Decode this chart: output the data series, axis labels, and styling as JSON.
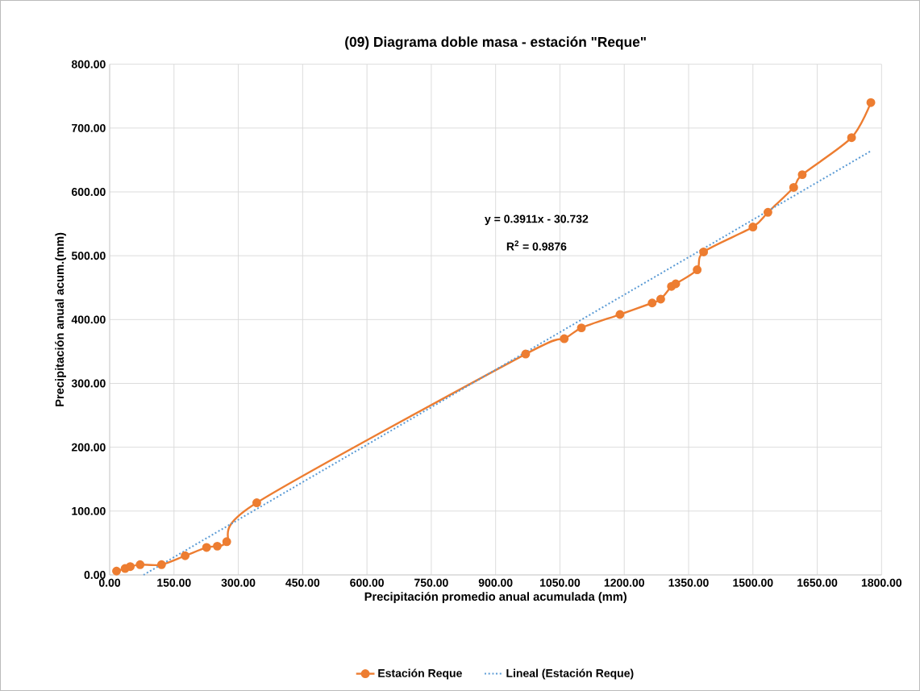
{
  "chart_data": {
    "type": "line",
    "title": "(09) Diagrama doble masa - estación \"Reque\"",
    "xlabel": "Precipitación promedio anual acumulada (mm)",
    "ylabel": "Precipitación anual acum.(mm)",
    "series": [
      {
        "name": "Estación Reque",
        "color": "#ed7d31",
        "marker": "circle",
        "line_style": "solid",
        "x": [
          16,
          36,
          48,
          71,
          121,
          176,
          226,
          251,
          273,
          343,
          970,
          1060,
          1100,
          1190,
          1265,
          1285,
          1310,
          1320,
          1370,
          1385,
          1500,
          1535,
          1595,
          1615,
          1730,
          1775
        ],
        "values": [
          6,
          10,
          13,
          16,
          16,
          30,
          43,
          45,
          52,
          113,
          346,
          370,
          387,
          408,
          426,
          432,
          452,
          456,
          478,
          506,
          545,
          568,
          607,
          627,
          685,
          740
        ]
      },
      {
        "name": "Lineal (Estación Reque)",
        "color": "#5b9bd5",
        "marker": "none",
        "line_style": "dotted",
        "x": [
          79,
          1775
        ],
        "values": [
          0,
          664
        ]
      }
    ],
    "xlim": [
      0,
      1800
    ],
    "xticks": [
      {
        "value": 0,
        "label": "0.00"
      },
      {
        "value": 150,
        "label": "150.00"
      },
      {
        "value": 300,
        "label": "300.00"
      },
      {
        "value": 450,
        "label": "450.00"
      },
      {
        "value": 600,
        "label": "600.00"
      },
      {
        "value": 750,
        "label": "750.00"
      },
      {
        "value": 900,
        "label": "900.00"
      },
      {
        "value": 1050,
        "label": "1050.00"
      },
      {
        "value": 1200,
        "label": "1200.00"
      },
      {
        "value": 1350,
        "label": "1350.00"
      },
      {
        "value": 1500,
        "label": "1500.00"
      },
      {
        "value": 1650,
        "label": "1650.00"
      },
      {
        "value": 1800,
        "label": "1800.00"
      }
    ],
    "ylim": [
      0,
      800
    ],
    "yticks": [
      {
        "value": 0,
        "label": "0.00"
      },
      {
        "value": 100,
        "label": "100.00"
      },
      {
        "value": 200,
        "label": "200.00"
      },
      {
        "value": 300,
        "label": "300.00"
      },
      {
        "value": 400,
        "label": "400.00"
      },
      {
        "value": 500,
        "label": "500.00"
      },
      {
        "value": 600,
        "label": "600.00"
      },
      {
        "value": 700,
        "label": "700.00"
      },
      {
        "value": 800,
        "label": "800.00"
      }
    ],
    "annotations": [
      "y = 0.3911x - 30.732",
      "R$^{2}$ = 0.9876"
    ],
    "grid": true,
    "legend": "bottom"
  }
}
